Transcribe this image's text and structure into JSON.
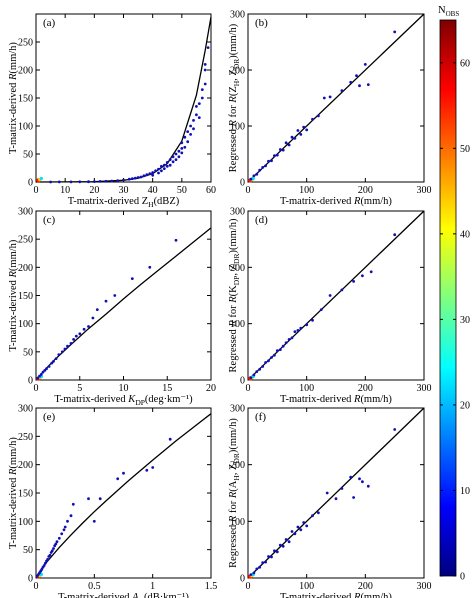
{
  "colorbar": {
    "title_main": "N",
    "title_sub": "OBS",
    "ticks": [
      0,
      10,
      20,
      30,
      40,
      50,
      60
    ],
    "range": [
      0,
      65
    ],
    "colormap": [
      "#00007f",
      "#0000ff",
      "#007fff",
      "#00ffff",
      "#7fff7f",
      "#ffff00",
      "#ff7f00",
      "#ff0000",
      "#7f0000"
    ]
  },
  "chart_data": [
    {
      "type": "scatter",
      "panel": "(a)",
      "xlabel": "T-matrix-derived Z",
      "xlabel_sub": "H",
      "xlabel_unit": "(dBZ)",
      "ylabel_pre": "T-matrix-derived ",
      "ylabel_var": "R",
      "ylabel_unit": "(mm/h)",
      "xlim": [
        0,
        60
      ],
      "ylim": [
        0,
        300
      ],
      "xticks": [
        0,
        10,
        20,
        30,
        40,
        50,
        60
      ],
      "yticks": [
        0,
        50,
        100,
        150,
        200,
        250
      ],
      "fit_line": [
        [
          0,
          0.02
        ],
        [
          10,
          0.12
        ],
        [
          20,
          0.6
        ],
        [
          30,
          3
        ],
        [
          35,
          6.8
        ],
        [
          40,
          15
        ],
        [
          45,
          33
        ],
        [
          50,
          73
        ],
        [
          55,
          155
        ],
        [
          58,
          235
        ],
        [
          60,
          295
        ]
      ],
      "points": [
        [
          5,
          0.05
        ],
        [
          8,
          0.1
        ],
        [
          12,
          0.2
        ],
        [
          15,
          0.3
        ],
        [
          18,
          0.5
        ],
        [
          20,
          0.7
        ],
        [
          22,
          1
        ],
        [
          24,
          1.3
        ],
        [
          26,
          1.8
        ],
        [
          28,
          2.5
        ],
        [
          30,
          3.5
        ],
        [
          32,
          5
        ],
        [
          33,
          6
        ],
        [
          34,
          7
        ],
        [
          35,
          8
        ],
        [
          36,
          9
        ],
        [
          37,
          11
        ],
        [
          38,
          13
        ],
        [
          39,
          15
        ],
        [
          40,
          17
        ],
        [
          40,
          12
        ],
        [
          41,
          20
        ],
        [
          42,
          23
        ],
        [
          42,
          16
        ],
        [
          43,
          28
        ],
        [
          43,
          20
        ],
        [
          44,
          30
        ],
        [
          44,
          24
        ],
        [
          45,
          35
        ],
        [
          45,
          28
        ],
        [
          46,
          40
        ],
        [
          46,
          30
        ],
        [
          47,
          45
        ],
        [
          47,
          36
        ],
        [
          48,
          50
        ],
        [
          48,
          40
        ],
        [
          49,
          55
        ],
        [
          49,
          45
        ],
        [
          50,
          60
        ],
        [
          50,
          70
        ],
        [
          50,
          52
        ],
        [
          51,
          80
        ],
        [
          51,
          62
        ],
        [
          52,
          90
        ],
        [
          52,
          72
        ],
        [
          53,
          100
        ],
        [
          53,
          85
        ],
        [
          54,
          110
        ],
        [
          54,
          95
        ],
        [
          55,
          120
        ],
        [
          55,
          135
        ],
        [
          56,
          140
        ],
        [
          56,
          115
        ],
        [
          57,
          150
        ],
        [
          57,
          165
        ],
        [
          58,
          200
        ],
        [
          58,
          175
        ],
        [
          59,
          240
        ],
        [
          58,
          210
        ]
      ]
    },
    {
      "type": "scatter",
      "panel": "(b)",
      "xlabel_pre": "T-matrix-derived ",
      "xlabel_var": "R",
      "xlabel_unit": "(mm/h)",
      "ylabel_pre": "Regressed ",
      "ylabel_var": "R",
      "ylabel_mid": " for ",
      "ylabel_func": "R",
      "ylabel_args": "(Z",
      "ylabel_s1": "H",
      "ylabel_sep": ", Z",
      "ylabel_s2": "DR",
      "ylabel_end": ")(mm/h)",
      "xlim": [
        0,
        300
      ],
      "ylim": [
        0,
        300
      ],
      "xticks": [
        0,
        100,
        200,
        300
      ],
      "yticks": [
        0,
        100,
        200,
        300
      ],
      "fit_line": [
        [
          0,
          0
        ],
        [
          300,
          300
        ]
      ],
      "points": [
        [
          5,
          5
        ],
        [
          10,
          11
        ],
        [
          15,
          14
        ],
        [
          20,
          21
        ],
        [
          25,
          26
        ],
        [
          30,
          29
        ],
        [
          35,
          37
        ],
        [
          40,
          38
        ],
        [
          45,
          47
        ],
        [
          50,
          48
        ],
        [
          55,
          58
        ],
        [
          60,
          57
        ],
        [
          65,
          70
        ],
        [
          70,
          66
        ],
        [
          75,
          80
        ],
        [
          80,
          78
        ],
        [
          85,
          92
        ],
        [
          90,
          85
        ],
        [
          95,
          98
        ],
        [
          100,
          93
        ],
        [
          110,
          112
        ],
        [
          120,
          118
        ],
        [
          130,
          150
        ],
        [
          140,
          152
        ],
        [
          160,
          163
        ],
        [
          175,
          178
        ],
        [
          185,
          190
        ],
        [
          190,
          172
        ],
        [
          200,
          210
        ],
        [
          205,
          174
        ],
        [
          250,
          268
        ]
      ]
    },
    {
      "type": "scatter",
      "panel": "(c)",
      "xlabel_pre": "T-matrix-derived   ",
      "xlabel_var": "K",
      "xlabel_sub": "DP",
      "xlabel_unit": "(deg·km⁻¹)",
      "ylabel_pre": "T-matrix-derived ",
      "ylabel_var": "R",
      "ylabel_unit": "(mm/h)",
      "xlim": [
        0,
        20
      ],
      "ylim": [
        0,
        300
      ],
      "xticks": [
        0,
        5,
        10,
        15,
        20
      ],
      "yticks": [
        0,
        50,
        100,
        150,
        200,
        250,
        300
      ],
      "fit_line": [
        [
          0,
          0
        ],
        [
          1,
          18
        ],
        [
          2,
          34
        ],
        [
          4,
          63
        ],
        [
          6,
          91
        ],
        [
          8,
          117
        ],
        [
          10,
          144
        ],
        [
          12,
          170
        ],
        [
          14,
          195
        ],
        [
          16,
          220
        ],
        [
          18,
          245
        ],
        [
          20,
          270
        ]
      ],
      "points": [
        [
          0.2,
          3
        ],
        [
          0.4,
          7
        ],
        [
          0.6,
          10
        ],
        [
          0.8,
          14
        ],
        [
          1,
          17
        ],
        [
          1.2,
          20
        ],
        [
          1.5,
          24
        ],
        [
          1.8,
          30
        ],
        [
          2,
          33
        ],
        [
          2.3,
          38
        ],
        [
          2.6,
          45
        ],
        [
          3,
          50
        ],
        [
          3.3,
          55
        ],
        [
          3.6,
          60
        ],
        [
          4,
          65
        ],
        [
          4.3,
          72
        ],
        [
          4.6,
          78
        ],
        [
          5,
          82
        ],
        [
          5.5,
          90
        ],
        [
          6,
          95
        ],
        [
          6.5,
          110
        ],
        [
          7,
          125
        ],
        [
          8,
          140
        ],
        [
          9,
          150
        ],
        [
          11,
          180
        ],
        [
          13,
          200
        ],
        [
          16,
          248
        ]
      ]
    },
    {
      "type": "scatter",
      "panel": "(d)",
      "xlabel_pre": "T-matrix-derived ",
      "xlabel_var": "R",
      "xlabel_unit": "(mm/h)",
      "ylabel_pre": "Regressed ",
      "ylabel_var": "R",
      "ylabel_mid": " for ",
      "ylabel_func": "R",
      "ylabel_args": "(K",
      "ylabel_s1": "DP",
      "ylabel_sep": ", Z",
      "ylabel_s2": "DR",
      "ylabel_end": ")(mm/h)",
      "xlim": [
        0,
        300
      ],
      "ylim": [
        0,
        300
      ],
      "xticks": [
        0,
        100,
        200,
        300
      ],
      "yticks": [
        0,
        100,
        200,
        300
      ],
      "fit_line": [
        [
          0,
          0
        ],
        [
          300,
          300
        ]
      ],
      "points": [
        [
          5,
          4
        ],
        [
          10,
          9
        ],
        [
          15,
          15
        ],
        [
          20,
          19
        ],
        [
          25,
          24
        ],
        [
          30,
          31
        ],
        [
          35,
          34
        ],
        [
          40,
          40
        ],
        [
          45,
          44
        ],
        [
          50,
          52
        ],
        [
          55,
          54
        ],
        [
          60,
          60
        ],
        [
          65,
          66
        ],
        [
          70,
          72
        ],
        [
          75,
          75
        ],
        [
          80,
          86
        ],
        [
          85,
          88
        ],
        [
          90,
          92
        ],
        [
          100,
          98
        ],
        [
          110,
          106
        ],
        [
          125,
          125
        ],
        [
          140,
          150
        ],
        [
          160,
          160
        ],
        [
          180,
          175
        ],
        [
          195,
          185
        ],
        [
          210,
          192
        ],
        [
          250,
          258
        ]
      ]
    },
    {
      "type": "scatter",
      "panel": "(e)",
      "xlabel_pre": "T-matrix-derived ",
      "xlabel_var": "A",
      "xlabel_sub": "H",
      "xlabel_unit": "(dB·km⁻¹)",
      "ylabel_pre": "T-matrix-derived ",
      "ylabel_var": "R",
      "ylabel_unit": "(mm/h)",
      "xlim": [
        0,
        1.5
      ],
      "ylim": [
        0,
        300
      ],
      "xticks": [
        0,
        0.5,
        1,
        1.5
      ],
      "yticks": [
        0,
        50,
        100,
        150,
        200,
        250,
        300
      ],
      "fit_line": [
        [
          0,
          0
        ],
        [
          0.05,
          17
        ],
        [
          0.1,
          30
        ],
        [
          0.2,
          54
        ],
        [
          0.3,
          76
        ],
        [
          0.4,
          97
        ],
        [
          0.5,
          117
        ],
        [
          0.6,
          136
        ],
        [
          0.8,
          173
        ],
        [
          1.0,
          208
        ],
        [
          1.2,
          242
        ],
        [
          1.4,
          274
        ],
        [
          1.5,
          290
        ]
      ],
      "points": [
        [
          0.01,
          3
        ],
        [
          0.02,
          6
        ],
        [
          0.03,
          9
        ],
        [
          0.04,
          12
        ],
        [
          0.05,
          15
        ],
        [
          0.06,
          19
        ],
        [
          0.07,
          22
        ],
        [
          0.08,
          26
        ],
        [
          0.09,
          30
        ],
        [
          0.1,
          33
        ],
        [
          0.11,
          38
        ],
        [
          0.12,
          40
        ],
        [
          0.13,
          45
        ],
        [
          0.14,
          48
        ],
        [
          0.15,
          52
        ],
        [
          0.16,
          57
        ],
        [
          0.17,
          60
        ],
        [
          0.18,
          64
        ],
        [
          0.2,
          70
        ],
        [
          0.22,
          78
        ],
        [
          0.24,
          85
        ],
        [
          0.25,
          90
        ],
        [
          0.27,
          100
        ],
        [
          0.3,
          110
        ],
        [
          0.32,
          130
        ],
        [
          0.45,
          140
        ],
        [
          0.5,
          100
        ],
        [
          0.55,
          140
        ],
        [
          0.7,
          175
        ],
        [
          0.75,
          185
        ],
        [
          0.95,
          190
        ],
        [
          1.0,
          195
        ],
        [
          1.15,
          245
        ]
      ]
    },
    {
      "type": "scatter",
      "panel": "(f)",
      "xlabel_pre": "T-matrix-derived ",
      "xlabel_var": "R",
      "xlabel_unit": "(mm/h)",
      "ylabel_pre": "Regressed ",
      "ylabel_var": "R",
      "ylabel_mid": " for ",
      "ylabel_func": "R",
      "ylabel_args": "(A",
      "ylabel_s1": "H",
      "ylabel_sep": ", Z",
      "ylabel_s2": "DR",
      "ylabel_end": ")(mm/h)",
      "xlim": [
        0,
        300
      ],
      "ylim": [
        0,
        300
      ],
      "xticks": [
        0,
        100,
        200,
        300
      ],
      "yticks": [
        0,
        100,
        200,
        300
      ],
      "fit_line": [
        [
          0,
          0
        ],
        [
          300,
          300
        ]
      ],
      "points": [
        [
          5,
          6
        ],
        [
          10,
          9
        ],
        [
          15,
          16
        ],
        [
          20,
          19
        ],
        [
          25,
          27
        ],
        [
          30,
          28
        ],
        [
          35,
          38
        ],
        [
          40,
          37
        ],
        [
          45,
          48
        ],
        [
          50,
          46
        ],
        [
          55,
          58
        ],
        [
          60,
          56
        ],
        [
          65,
          68
        ],
        [
          70,
          64
        ],
        [
          75,
          82
        ],
        [
          80,
          78
        ],
        [
          85,
          90
        ],
        [
          90,
          85
        ],
        [
          95,
          98
        ],
        [
          100,
          92
        ],
        [
          110,
          110
        ],
        [
          120,
          115
        ],
        [
          135,
          150
        ],
        [
          150,
          140
        ],
        [
          160,
          158
        ],
        [
          175,
          178
        ],
        [
          180,
          142
        ],
        [
          190,
          175
        ],
        [
          195,
          170
        ],
        [
          205,
          162
        ],
        [
          250,
          262
        ]
      ]
    }
  ]
}
